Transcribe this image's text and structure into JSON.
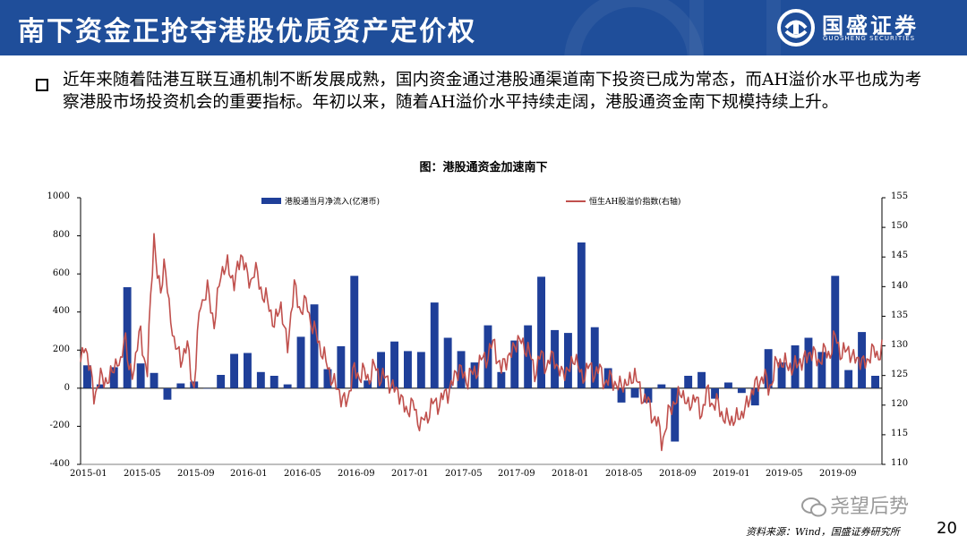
{
  "title": "南下资金正抢夺港股优质资产定价权",
  "logo": {
    "name": "国盛证券",
    "sub": "GUOSHENG SECURITIES"
  },
  "paragraph": "近年来随着陆港互联互通机制不断发展成熟，国内资金通过港股通渠道南下投资已成为常态，而AH溢价水平也成为考察港股市场投资机会的重要指标。年初以来，随着AH溢价水平持续走阔，港股通资金南下规模持续上升。",
  "chart_title": "图：港股通资金加速南下",
  "source": "资料来源：Wind，国盛证券研究所",
  "page_number": "20",
  "watermark": "尧望后势",
  "colors": {
    "header": "#1f4e9a",
    "bar": "#1f3f99",
    "line": "#c0504d"
  },
  "chart_data": {
    "type": "bar+line",
    "legend_position": "top",
    "grid": false,
    "x_tick_labels": [
      "2015-01",
      "2015-05",
      "2015-09",
      "2016-01",
      "2016-05",
      "2016-09",
      "2017-01",
      "2017-05",
      "2017-09",
      "2018-01",
      "2018-05",
      "2018-09",
      "2019-01",
      "2019-05",
      "2019-09"
    ],
    "y_left": {
      "ticks": [
        "1000",
        "800",
        "600",
        "400",
        "200",
        "0",
        "-200",
        "-400"
      ],
      "range": [
        -400,
        1000
      ]
    },
    "y_right": {
      "ticks": [
        "155",
        "150",
        "145",
        "140",
        "135",
        "130",
        "125",
        "120",
        "115",
        "110"
      ],
      "range": [
        110,
        155
      ]
    },
    "months": [
      "2015-01",
      "2015-02",
      "2015-03",
      "2015-04",
      "2015-05",
      "2015-06",
      "2015-07",
      "2015-08",
      "2015-09",
      "2015-10",
      "2015-11",
      "2015-12",
      "2016-01",
      "2016-02",
      "2016-03",
      "2016-04",
      "2016-05",
      "2016-06",
      "2016-07",
      "2016-08",
      "2016-09",
      "2016-10",
      "2016-11",
      "2016-12",
      "2017-01",
      "2017-02",
      "2017-03",
      "2017-04",
      "2017-05",
      "2017-06",
      "2017-07",
      "2017-08",
      "2017-09",
      "2017-10",
      "2017-11",
      "2017-12",
      "2018-01",
      "2018-02",
      "2018-03",
      "2018-04",
      "2018-05",
      "2018-06",
      "2018-07",
      "2018-08",
      "2018-09",
      "2018-10",
      "2018-11",
      "2018-12",
      "2019-01",
      "2019-02",
      "2019-03",
      "2019-04",
      "2019-05",
      "2019-06",
      "2019-07",
      "2019-08",
      "2019-09",
      "2019-10",
      "2019-11",
      "2019-12"
    ],
    "series": [
      {
        "name": "港股通当月净流入(亿港币)",
        "axis": "left",
        "kind": "bar",
        "values": [
          120,
          20,
          110,
          530,
          130,
          80,
          -60,
          25,
          35,
          0,
          70,
          180,
          185,
          85,
          65,
          20,
          270,
          440,
          100,
          220,
          590,
          40,
          190,
          245,
          195,
          190,
          450,
          265,
          195,
          135,
          330,
          85,
          250,
          330,
          585,
          305,
          290,
          765,
          320,
          105,
          -75,
          -50,
          -75,
          20,
          -280,
          65,
          85,
          -55,
          30,
          -25,
          -90,
          205,
          135,
          225,
          265,
          190,
          590,
          95,
          295,
          65
        ]
      },
      {
        "name": "恒生AH股溢价指数(右轴)",
        "axis": "right",
        "kind": "line",
        "anchors": [
          [
            0,
            126
          ],
          [
            0.3,
            132
          ],
          [
            0.6,
            126.5
          ],
          [
            1,
            122
          ],
          [
            1.5,
            124.5
          ],
          [
            2,
            124
          ],
          [
            2.5,
            126.5
          ],
          [
            3,
            127
          ],
          [
            3.3,
            133
          ],
          [
            3.6,
            125
          ],
          [
            4,
            127
          ],
          [
            4.5,
            132
          ],
          [
            5,
            125.5
          ],
          [
            5.3,
            140
          ],
          [
            5.5,
            149
          ],
          [
            5.8,
            141
          ],
          [
            6,
            138.5
          ],
          [
            6.3,
            145
          ],
          [
            6.6,
            137
          ],
          [
            7,
            130.5
          ],
          [
            7.5,
            128
          ],
          [
            8,
            129.5
          ],
          [
            8.5,
            123
          ],
          [
            9,
            138
          ],
          [
            9.5,
            139
          ],
          [
            10,
            134
          ],
          [
            10.5,
            142
          ],
          [
            11,
            144
          ],
          [
            11.5,
            140
          ],
          [
            12,
            146
          ],
          [
            12.5,
            141
          ],
          [
            13,
            142.5
          ],
          [
            13.5,
            140
          ],
          [
            14,
            137
          ],
          [
            14.5,
            134
          ],
          [
            15,
            136.5
          ],
          [
            15.5,
            130
          ],
          [
            16,
            140
          ],
          [
            16.5,
            136
          ],
          [
            17,
            137
          ],
          [
            17.5,
            132
          ],
          [
            18,
            130
          ],
          [
            18.5,
            126
          ],
          [
            19,
            124
          ],
          [
            19.5,
            121
          ],
          [
            20,
            121
          ],
          [
            20.5,
            126
          ],
          [
            21,
            125
          ],
          [
            21.5,
            125
          ],
          [
            22,
            126
          ],
          [
            22.5,
            125
          ],
          [
            23,
            124
          ],
          [
            23.5,
            123
          ],
          [
            24,
            121
          ],
          [
            24.5,
            119
          ],
          [
            25,
            120
          ],
          [
            25.5,
            116
          ],
          [
            26,
            119
          ],
          [
            26.5,
            120
          ],
          [
            27,
            121
          ],
          [
            27.5,
            122
          ],
          [
            28,
            125
          ],
          [
            28.5,
            126
          ],
          [
            29,
            124
          ],
          [
            29.5,
            126
          ],
          [
            30,
            127
          ],
          [
            30.5,
            129
          ],
          [
            31,
            130
          ],
          [
            31.5,
            126
          ],
          [
            32,
            128
          ],
          [
            32.5,
            130
          ],
          [
            33,
            131
          ],
          [
            33.5,
            129
          ],
          [
            34,
            126
          ],
          [
            34.5,
            128
          ],
          [
            35,
            127
          ],
          [
            35.5,
            128
          ],
          [
            36,
            125
          ],
          [
            36.5,
            126
          ],
          [
            37,
            128
          ],
          [
            37.5,
            125
          ],
          [
            38,
            126
          ],
          [
            38.5,
            126
          ],
          [
            39,
            125
          ],
          [
            39.5,
            124
          ],
          [
            40,
            124
          ],
          [
            40.5,
            123
          ],
          [
            41,
            124
          ],
          [
            41.5,
            125
          ],
          [
            42,
            122
          ],
          [
            42.5,
            120
          ],
          [
            43,
            118
          ],
          [
            43.5,
            114
          ],
          [
            44,
            118
          ],
          [
            44.5,
            121
          ],
          [
            45,
            122
          ],
          [
            45.5,
            120
          ],
          [
            46,
            121
          ],
          [
            46.5,
            119
          ],
          [
            47,
            122
          ],
          [
            47.5,
            120
          ],
          [
            48,
            119
          ],
          [
            48.5,
            117
          ],
          [
            49,
            118
          ],
          [
            49.5,
            118
          ],
          [
            50,
            121
          ],
          [
            50.5,
            123
          ],
          [
            51,
            125
          ],
          [
            51.5,
            123
          ],
          [
            52,
            126
          ],
          [
            52.5,
            128
          ],
          [
            53,
            126
          ],
          [
            53.5,
            127
          ],
          [
            54,
            127
          ],
          [
            54.5,
            129
          ],
          [
            55,
            128
          ],
          [
            55.5,
            128
          ],
          [
            56,
            129
          ],
          [
            56.5,
            131
          ],
          [
            57,
            129
          ],
          [
            57.5,
            129
          ],
          [
            58,
            128
          ],
          [
            58.5,
            127
          ],
          [
            59,
            128
          ],
          [
            59.5,
            129
          ]
        ]
      }
    ]
  }
}
